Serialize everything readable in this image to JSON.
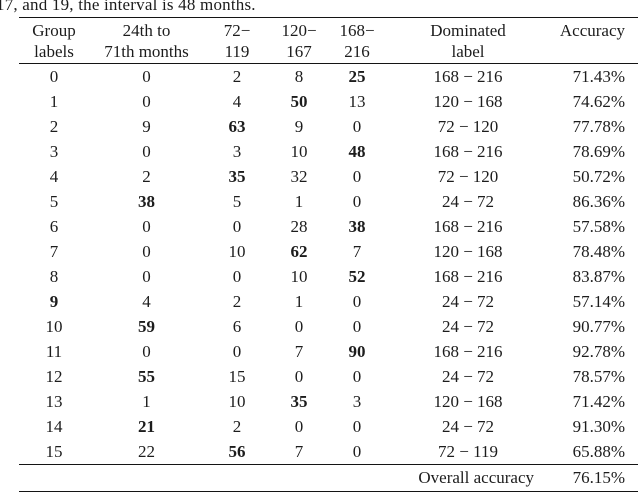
{
  "caption": "17, and 19, the interval is 48 months.",
  "colors": {
    "text": "#1c1c1c",
    "rule": "#141414",
    "background": "#ffffff"
  },
  "table": {
    "header": {
      "row1": [
        "Group",
        "24th to",
        "72−",
        "120−",
        "168−",
        "Dominated",
        "Accuracy"
      ],
      "row2": [
        "labels",
        "71th months",
        "119",
        "167",
        "216",
        "label",
        ""
      ]
    },
    "rows": [
      {
        "label": "0",
        "label_bold": false,
        "counts": [
          "0",
          "2",
          "8",
          "25"
        ],
        "bold_index": 3,
        "dominated": "168 − 216",
        "accuracy": "71.43%"
      },
      {
        "label": "1",
        "label_bold": false,
        "counts": [
          "0",
          "4",
          "50",
          "13"
        ],
        "bold_index": 2,
        "dominated": "120 − 168",
        "accuracy": "74.62%"
      },
      {
        "label": "2",
        "label_bold": false,
        "counts": [
          "9",
          "63",
          "9",
          "0"
        ],
        "bold_index": 1,
        "dominated": "72 − 120",
        "accuracy": "77.78%"
      },
      {
        "label": "3",
        "label_bold": false,
        "counts": [
          "0",
          "3",
          "10",
          "48"
        ],
        "bold_index": 3,
        "dominated": "168 − 216",
        "accuracy": "78.69%"
      },
      {
        "label": "4",
        "label_bold": false,
        "counts": [
          "2",
          "35",
          "32",
          "0"
        ],
        "bold_index": 1,
        "dominated": "72 − 120",
        "accuracy": "50.72%"
      },
      {
        "label": "5",
        "label_bold": false,
        "counts": [
          "38",
          "5",
          "1",
          "0"
        ],
        "bold_index": 0,
        "dominated": "24 − 72",
        "accuracy": "86.36%"
      },
      {
        "label": "6",
        "label_bold": false,
        "counts": [
          "0",
          "0",
          "28",
          "38"
        ],
        "bold_index": 3,
        "dominated": "168 − 216",
        "accuracy": "57.58%"
      },
      {
        "label": "7",
        "label_bold": false,
        "counts": [
          "0",
          "10",
          "62",
          "7"
        ],
        "bold_index": 2,
        "dominated": "120 − 168",
        "accuracy": "78.48%"
      },
      {
        "label": "8",
        "label_bold": false,
        "counts": [
          "0",
          "0",
          "10",
          "52"
        ],
        "bold_index": 3,
        "dominated": "168 − 216",
        "accuracy": "83.87%"
      },
      {
        "label": "9",
        "label_bold": true,
        "counts": [
          "4",
          "2",
          "1",
          "0"
        ],
        "bold_index": -1,
        "dominated": "24 − 72",
        "accuracy": "57.14%"
      },
      {
        "label": "10",
        "label_bold": false,
        "counts": [
          "59",
          "6",
          "0",
          "0"
        ],
        "bold_index": 0,
        "dominated": "24 − 72",
        "accuracy": "90.77%"
      },
      {
        "label": "11",
        "label_bold": false,
        "counts": [
          "0",
          "0",
          "7",
          "90"
        ],
        "bold_index": 3,
        "dominated": "168 − 216",
        "accuracy": "92.78%"
      },
      {
        "label": "12",
        "label_bold": false,
        "counts": [
          "55",
          "15",
          "0",
          "0"
        ],
        "bold_index": 0,
        "dominated": "24 − 72",
        "accuracy": "78.57%"
      },
      {
        "label": "13",
        "label_bold": false,
        "counts": [
          "1",
          "10",
          "35",
          "3"
        ],
        "bold_index": 2,
        "dominated": "120 − 168",
        "accuracy": "71.42%"
      },
      {
        "label": "14",
        "label_bold": false,
        "counts": [
          "21",
          "2",
          "0",
          "0"
        ],
        "bold_index": 0,
        "dominated": "24 − 72",
        "accuracy": "91.30%"
      },
      {
        "label": "15",
        "label_bold": false,
        "counts": [
          "22",
          "56",
          "7",
          "0"
        ],
        "bold_index": 1,
        "dominated": "72 − 119",
        "accuracy": "65.88%"
      }
    ],
    "footer": {
      "label": "Overall accuracy",
      "value": "76.15%"
    }
  }
}
